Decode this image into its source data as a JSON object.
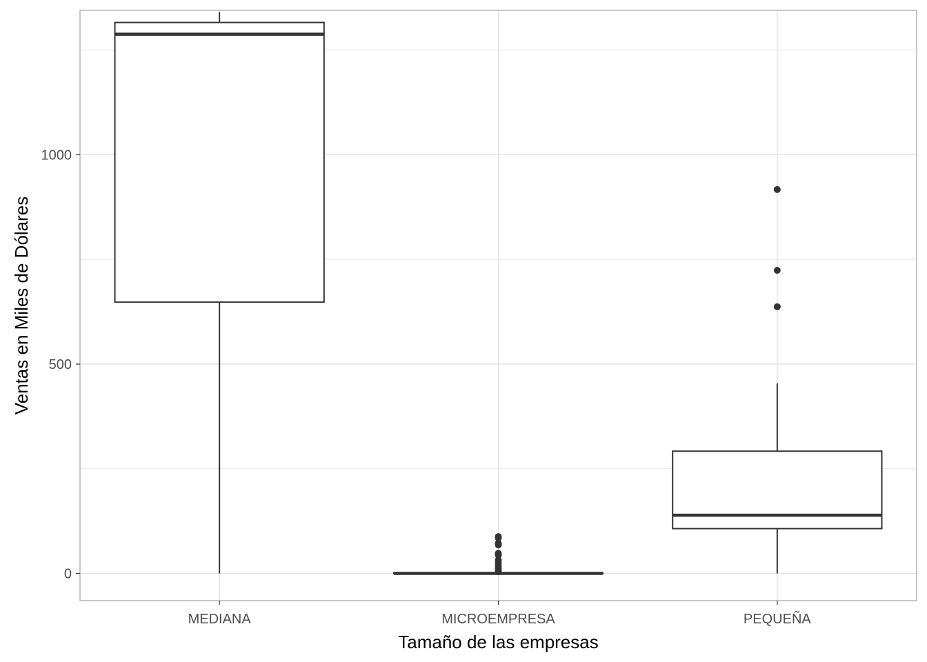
{
  "chart_data": {
    "type": "boxplot",
    "title": "",
    "xlabel": "Tamaño de las empresas",
    "ylabel": "Ventas en Miles de Dólares",
    "categories": [
      "MEDIANA",
      "MICROEMPRESA",
      "PEQUEÑA"
    ],
    "ylim": [
      -65,
      1345
    ],
    "y_ticks": [
      0,
      500,
      1000
    ],
    "grid": true,
    "boxes": [
      {
        "category": "MEDIANA",
        "min": 0,
        "q1": 648,
        "median": 1288,
        "q3": 1316,
        "max": 1341,
        "outliers": []
      },
      {
        "category": "MICROEMPRESA",
        "min": 0,
        "q1": 0,
        "median": 0,
        "q3": 1,
        "max": 1,
        "outliers": [
          4,
          8,
          12,
          18,
          25,
          32,
          44,
          48,
          68,
          72,
          85,
          88
        ]
      },
      {
        "category": "PEQUEÑA",
        "min": 0,
        "q1": 107,
        "median": 139,
        "q3": 292,
        "max": 454,
        "outliers": [
          637,
          724,
          917
        ]
      }
    ]
  },
  "colors": {
    "panel_border": "#b3b3b3",
    "grid": "#dedede",
    "box_stroke": "#333333",
    "point": "#333333"
  }
}
